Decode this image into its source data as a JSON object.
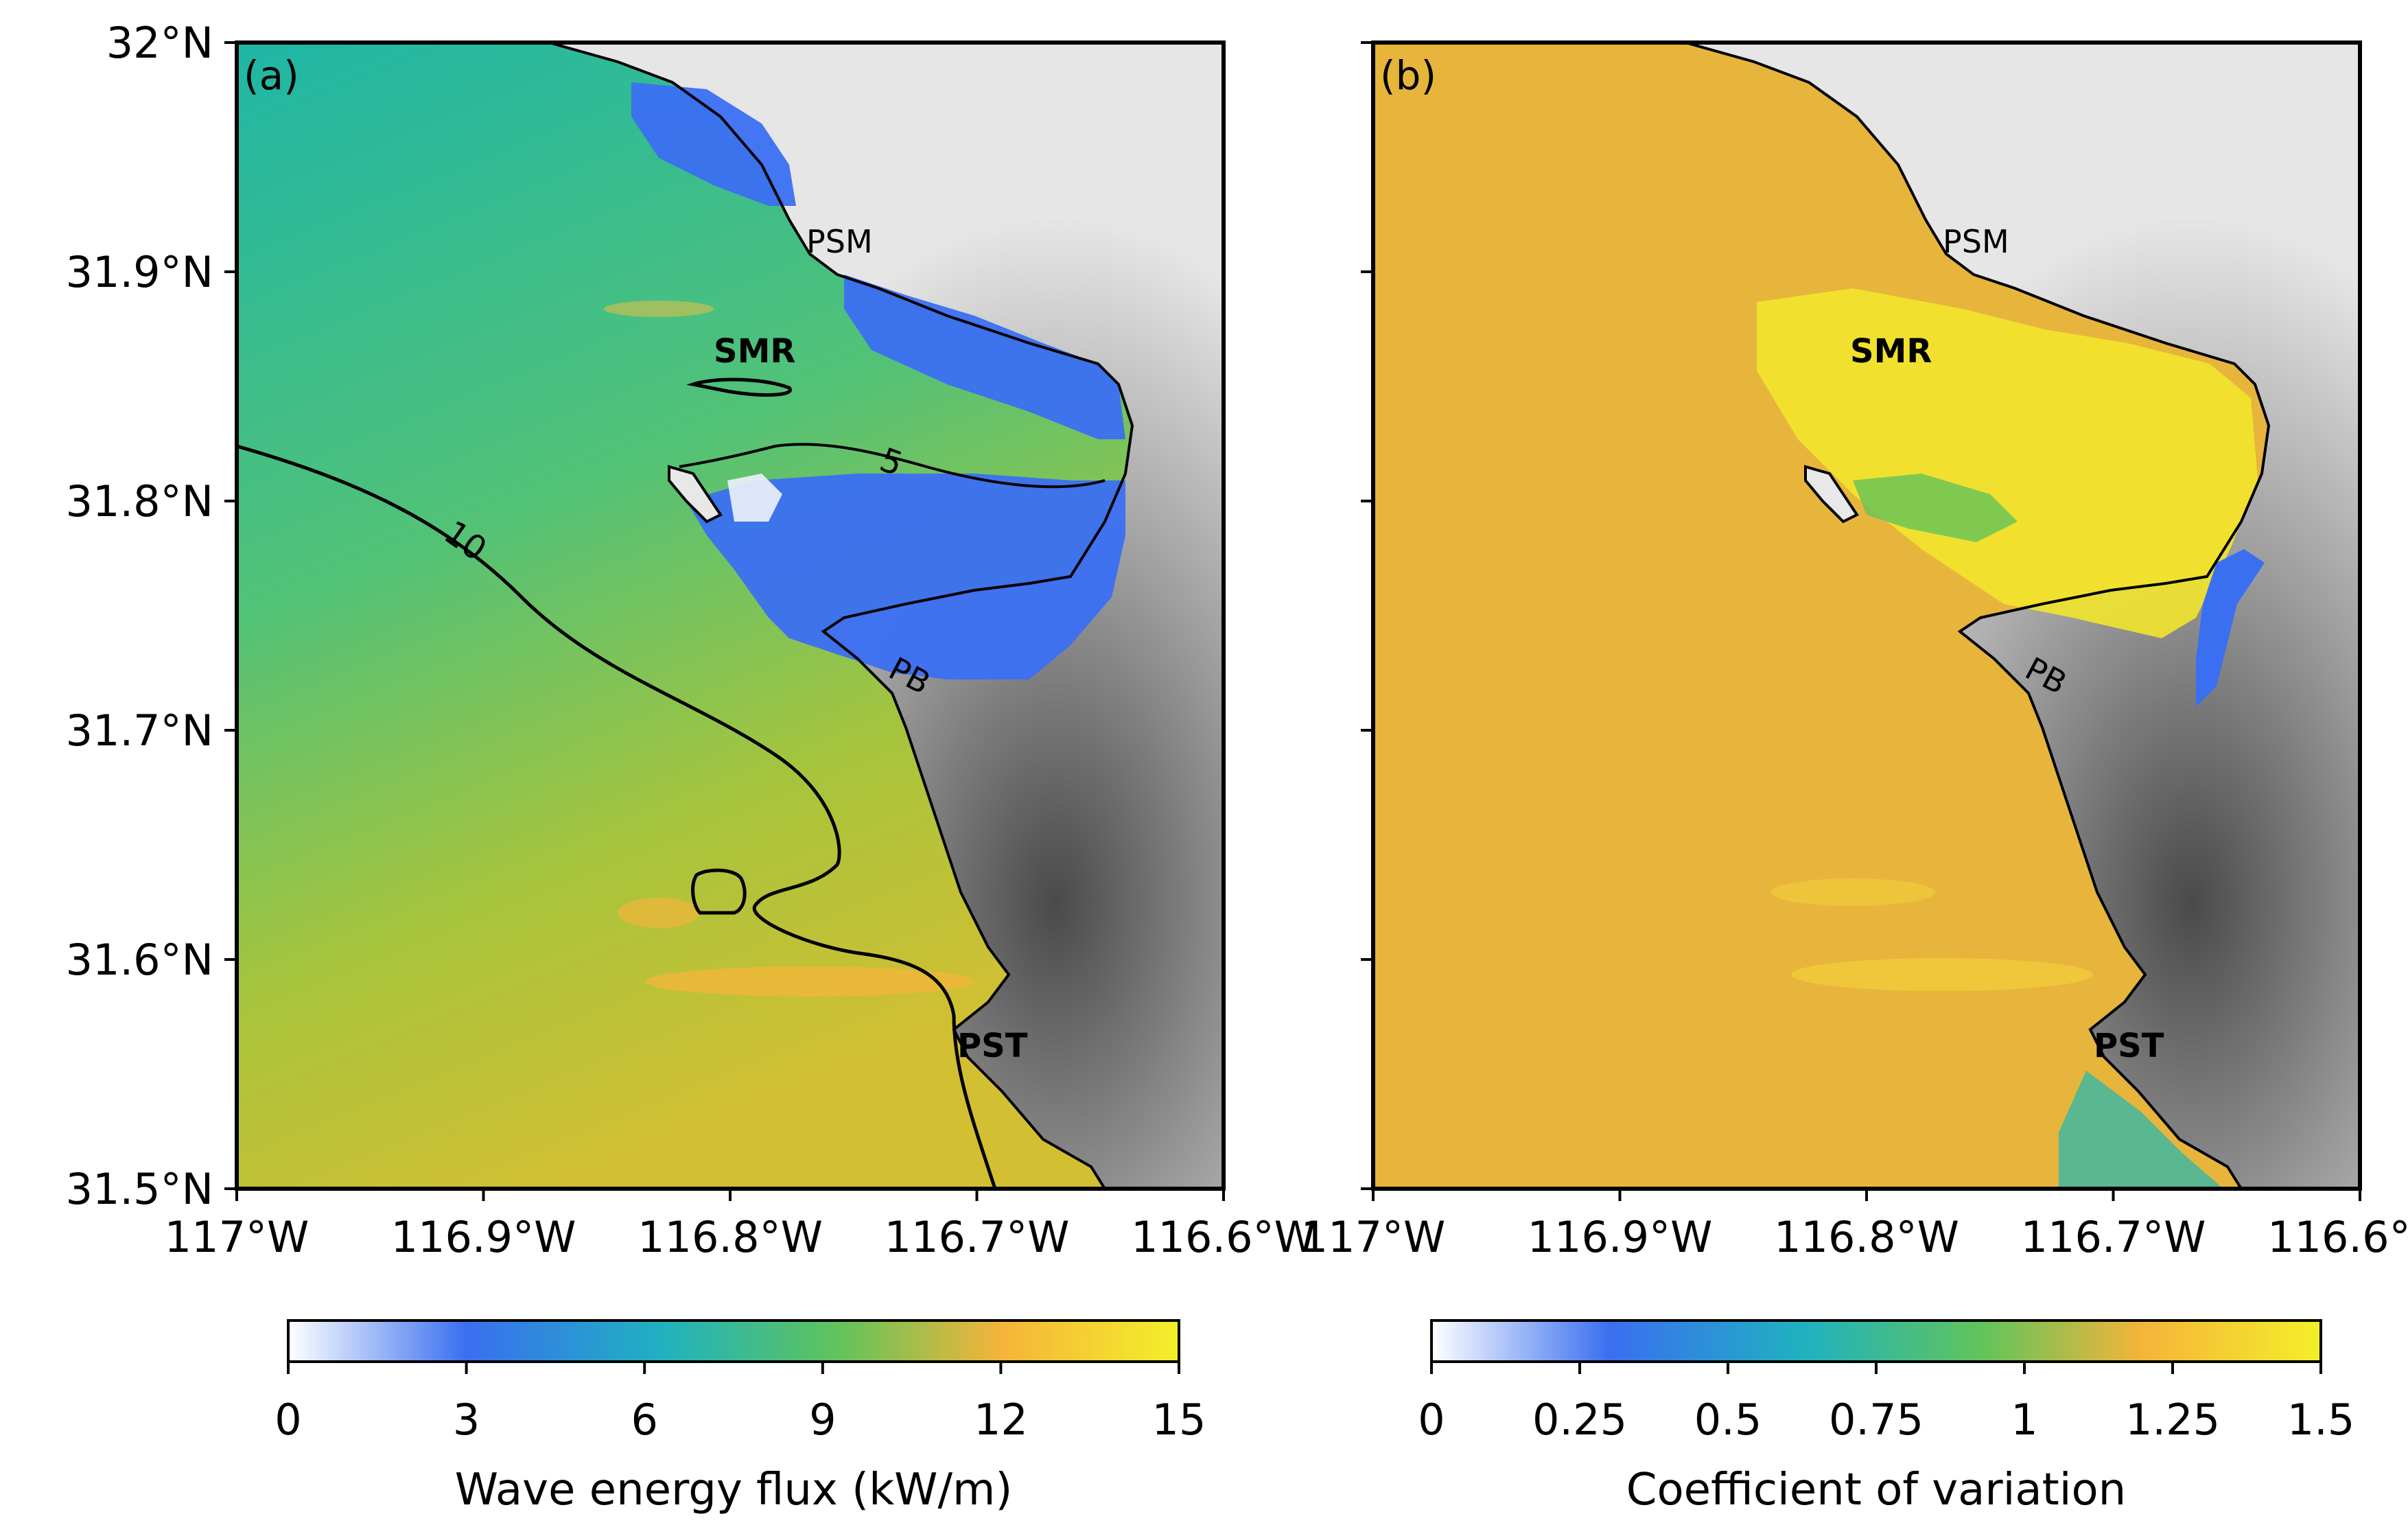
{
  "panels": [
    {
      "tag": "(a)",
      "colorbar": {
        "title": "Wave energy flux (kW/m)",
        "ticks": [
          "0",
          "3",
          "6",
          "9",
          "12",
          "15"
        ],
        "range": [
          0,
          15
        ]
      },
      "contours": [
        {
          "level": 5,
          "label": "5"
        },
        {
          "level": 10,
          "label": "10"
        }
      ]
    },
    {
      "tag": "(b)",
      "colorbar": {
        "title": "Coefficient of variation",
        "ticks": [
          "0",
          "0.25",
          "0.5",
          "0.75",
          "1",
          "1.25",
          "1.5"
        ],
        "range": [
          0,
          1.5
        ]
      }
    }
  ],
  "x_ticks": [
    "117°W",
    "116.9°W",
    "116.8°W",
    "116.7°W",
    "116.6°W"
  ],
  "y_ticks": [
    "32°N",
    "31.9°N",
    "31.8°N",
    "31.7°N",
    "31.6°N",
    "31.5°N"
  ],
  "places": {
    "psm": "PSM",
    "smr": "SMR",
    "pb": "PB",
    "pst": "PST"
  },
  "colormap": [
    "#ffffff",
    "#3a6ff0",
    "#1fb2c0",
    "#62c45a",
    "#f5b43a",
    "#f4ef2a"
  ],
  "colors": {
    "land_light": "#e6e6e6",
    "land_dark": "#4a4a4a",
    "coast_line": "#000000"
  }
}
